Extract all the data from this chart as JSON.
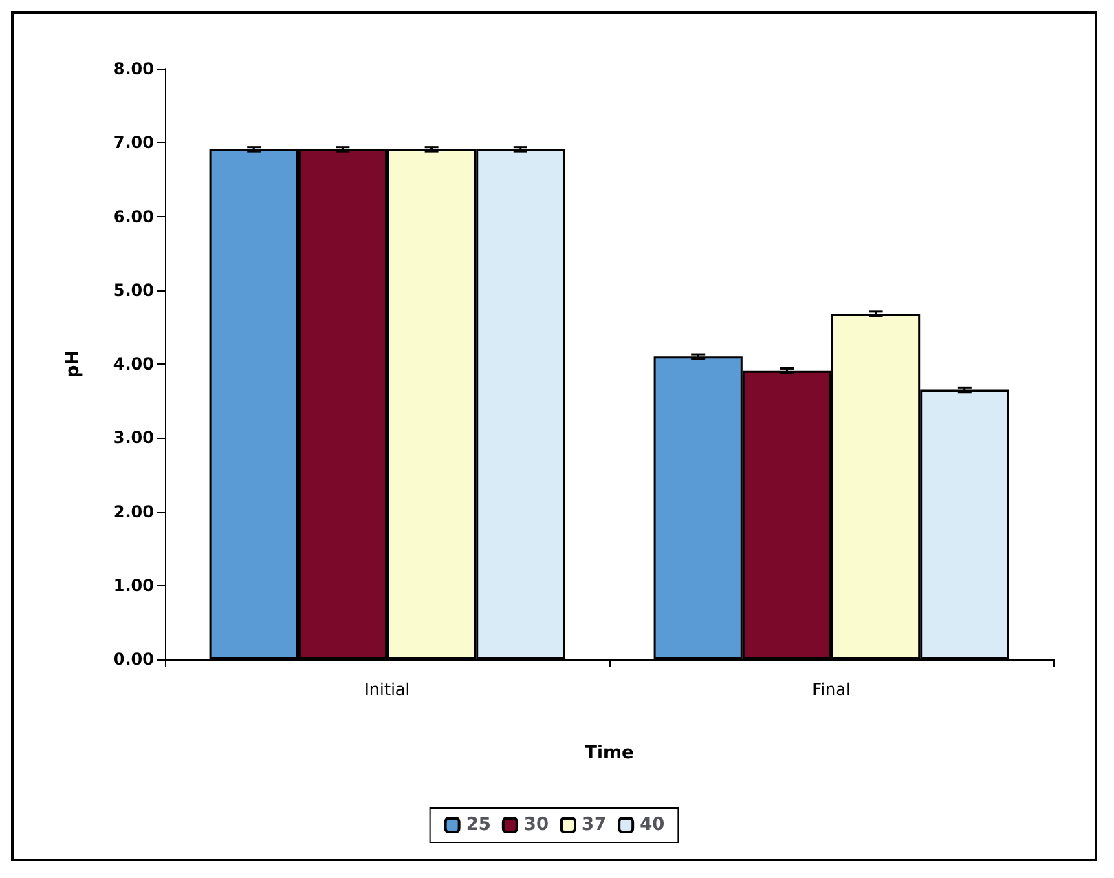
{
  "chart_data": {
    "type": "bar",
    "xlabel": "Time",
    "ylabel": "pH",
    "categories": [
      "Initial",
      "Final"
    ],
    "series": [
      {
        "name": "25",
        "color": "#5b9bd5",
        "values": [
          6.91,
          4.1
        ],
        "errors": [
          0.03,
          0.03
        ]
      },
      {
        "name": "30",
        "color": "#7b0a2a",
        "values": [
          6.91,
          3.91
        ],
        "errors": [
          0.03,
          0.03
        ]
      },
      {
        "name": "37",
        "color": "#fbfbd0",
        "values": [
          6.91,
          4.68
        ],
        "errors": [
          0.03,
          0.03
        ]
      },
      {
        "name": "40",
        "color": "#d8ebf7",
        "values": [
          6.91,
          3.65
        ],
        "errors": [
          0.03,
          0.03
        ]
      }
    ],
    "ylim": [
      0,
      8
    ],
    "yticks": [
      {
        "value": 0,
        "label": "0.00"
      },
      {
        "value": 1,
        "label": "1.00"
      },
      {
        "value": 2,
        "label": "2.00"
      },
      {
        "value": 3,
        "label": "3.00"
      },
      {
        "value": 4,
        "label": "4.00"
      },
      {
        "value": 5,
        "label": "5.00"
      },
      {
        "value": 6,
        "label": "6.00"
      },
      {
        "value": 7,
        "label": "7.00"
      },
      {
        "value": 8,
        "label": "8.00"
      }
    ],
    "grid": false,
    "legend": "bottom"
  }
}
